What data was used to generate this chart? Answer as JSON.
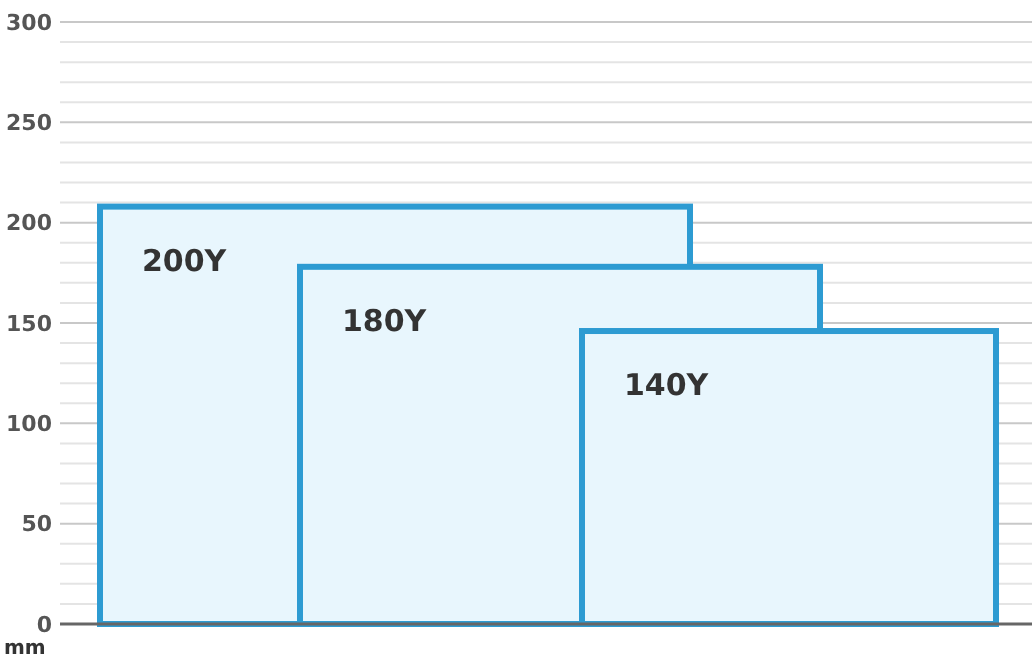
{
  "chart_data": {
    "type": "bar",
    "categories": [
      null
    ],
    "series": [
      {
        "name": "200Y",
        "color": "#e8f6fd",
        "values": [
          208
        ]
      },
      {
        "name": "180Y",
        "color": "#e8f6fd",
        "values": [
          178
        ]
      },
      {
        "name": "140Y",
        "color": "#e8f6fd",
        "values": [
          146
        ]
      }
    ],
    "ylabel": "mm",
    "ylim": [
      0,
      300
    ],
    "yticks": [
      0,
      {
        "value": 10,
        "label": null
      },
      {
        "value": 20,
        "label": null
      },
      {
        "value": 30,
        "label": null
      },
      {
        "value": 40,
        "label": null
      },
      50,
      {
        "value": 60,
        "label": null
      },
      {
        "value": 70,
        "label": null
      },
      {
        "value": 80,
        "label": null
      },
      {
        "value": 90,
        "label": null
      },
      100,
      {
        "value": 110,
        "label": null
      },
      {
        "value": 120,
        "label": null
      },
      {
        "value": 130,
        "label": null
      },
      {
        "value": 140,
        "label": null
      },
      150,
      {
        "value": 160,
        "label": null
      },
      {
        "value": 170,
        "label": null
      },
      {
        "value": 180,
        "label": null
      },
      {
        "value": 190,
        "label": null
      },
      200,
      {
        "value": 210,
        "label": null
      },
      {
        "value": 220,
        "label": null
      },
      {
        "value": 230,
        "label": null
      },
      {
        "value": 240,
        "label": null
      },
      250,
      {
        "value": 260,
        "label": null
      },
      {
        "value": 270,
        "label": null
      },
      {
        "value": 280,
        "label": null
      },
      {
        "value": 290,
        "label": null
      },
      300
    ],
    "grid": "y"
  }
}
